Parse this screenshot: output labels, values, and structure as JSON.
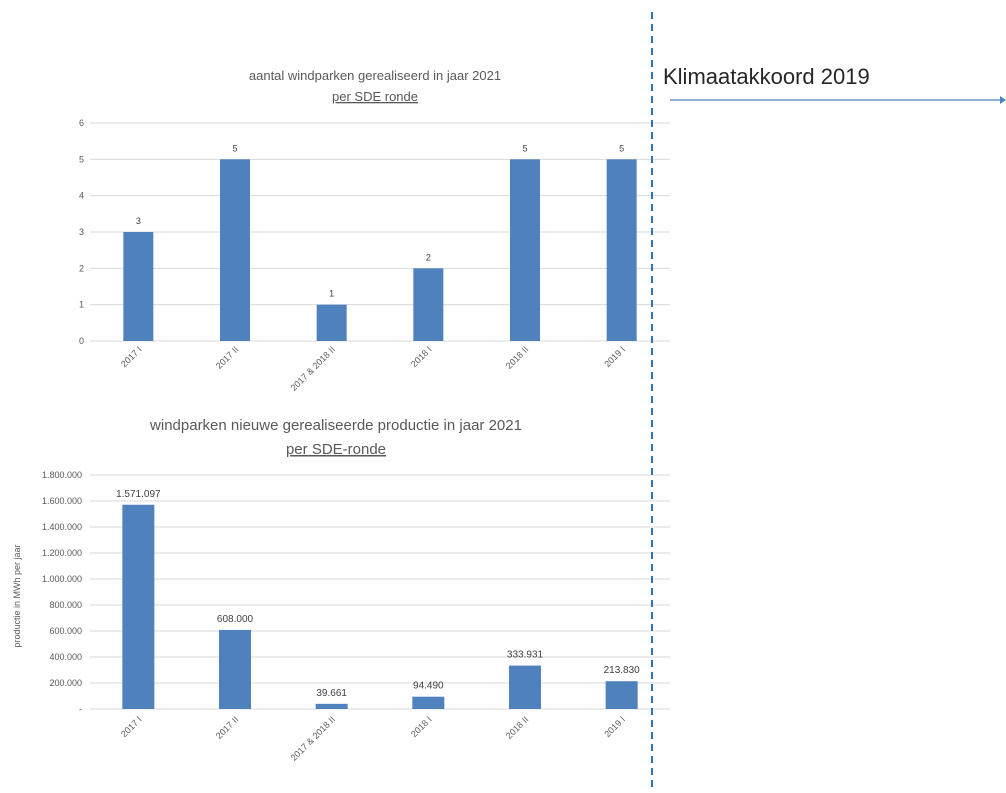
{
  "annotation": {
    "label": "Klimaatakkoord 2019",
    "arrow_color": "#4f81bd",
    "divider_color": "#2e75b6"
  },
  "chart_data": [
    {
      "type": "bar",
      "title": "aantal windparken gerealiseerd in jaar 2021",
      "subtitle": "per SDE ronde",
      "xlabel": "",
      "ylabel": "",
      "categories": [
        "2017 I",
        "2017 II",
        "2017 & 2018 II",
        "2018 I",
        "2018 II",
        "2019 I"
      ],
      "values": [
        3,
        5,
        1,
        2,
        5,
        5
      ],
      "value_labels": [
        "3",
        "5",
        "1",
        "2",
        "5",
        "5"
      ],
      "yticks": [
        "0",
        "1",
        "2",
        "3",
        "4",
        "5",
        "6"
      ],
      "ylim": [
        0,
        6
      ],
      "grid": true,
      "bar_color": "#4f81bd"
    },
    {
      "type": "bar",
      "title": "windparken nieuwe gerealiseerde productie in jaar 2021",
      "subtitle": "per SDE-ronde",
      "xlabel": "",
      "ylabel": "productie in MWh per jaar",
      "categories": [
        "2017 I",
        "2017 II",
        "2017 & 2018 II",
        "2018 I",
        "2018 II",
        "2019 I"
      ],
      "values": [
        1571097,
        608000,
        39661,
        94490,
        333931,
        213830
      ],
      "value_labels": [
        "1.571.097",
        "608.000",
        "39.661",
        "94.490",
        "333.931",
        "213.830"
      ],
      "yticks": [
        "-",
        "200.000",
        "400.000",
        "600.000",
        "800.000",
        "1.000.000",
        "1.200.000",
        "1.400.000",
        "1.600.000",
        "1.800.000"
      ],
      "ylim": [
        0,
        1800000
      ],
      "grid": true,
      "bar_color": "#4f81bd"
    }
  ]
}
